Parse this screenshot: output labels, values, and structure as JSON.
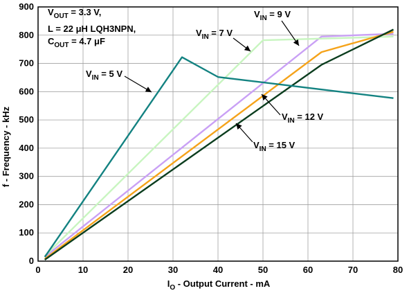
{
  "chart_data": {
    "type": "line",
    "xlabel": {
      "main": "I",
      "sub": "O",
      "rest": " - Output Current - mA"
    },
    "ylabel": "f - Frequency - kHz",
    "xlim": [
      0,
      80
    ],
    "ylim": [
      0,
      900
    ],
    "x_ticks": [
      0,
      10,
      20,
      30,
      40,
      50,
      60,
      70,
      80
    ],
    "y_ticks": [
      0,
      100,
      200,
      300,
      400,
      500,
      600,
      700,
      800,
      900
    ],
    "grid": true,
    "conditions": [
      {
        "main": "V",
        "sub": "OUT",
        "rest": " = 3.3 V,"
      },
      {
        "main": "",
        "sub": "",
        "rest": "L = 22 μH  LQH3NPN,"
      },
      {
        "main": "C",
        "sub": "OUT",
        "rest": " = 4.7 μF"
      }
    ],
    "series": [
      {
        "name": "V_IN = 9 V",
        "label": {
          "main": "V",
          "sub": "IN",
          "rest": " = 9 V"
        },
        "color": "#c9a0f5",
        "x": [
          1.5,
          63,
          79
        ],
        "y": [
          15,
          795,
          805
        ]
      },
      {
        "name": "V_IN = 7 V",
        "label": {
          "main": "V",
          "sub": "IN",
          "rest": " = 7 V"
        },
        "color": "#c8f5c0",
        "x": [
          1.5,
          50,
          79
        ],
        "y": [
          18,
          782,
          795
        ]
      },
      {
        "name": "V_IN = 12 V",
        "label": {
          "main": "V",
          "sub": "IN",
          "rest": " = 12 V"
        },
        "color": "#f5a31a",
        "x": [
          1.5,
          63,
          79
        ],
        "y": [
          8,
          740,
          812
        ]
      },
      {
        "name": "V_IN = 15 V",
        "label": {
          "main": "V",
          "sub": "IN",
          "rest": " = 15 V"
        },
        "color": "#0b3d1e",
        "x": [
          1.5,
          63,
          79
        ],
        "y": [
          5,
          695,
          820
        ]
      },
      {
        "name": "V_IN = 5 V",
        "label": {
          "main": "V",
          "sub": "IN",
          "rest": " = 5 V"
        },
        "color": "#138281",
        "x": [
          1.5,
          32,
          40,
          79
        ],
        "y": [
          15,
          722,
          652,
          577
        ]
      }
    ]
  }
}
